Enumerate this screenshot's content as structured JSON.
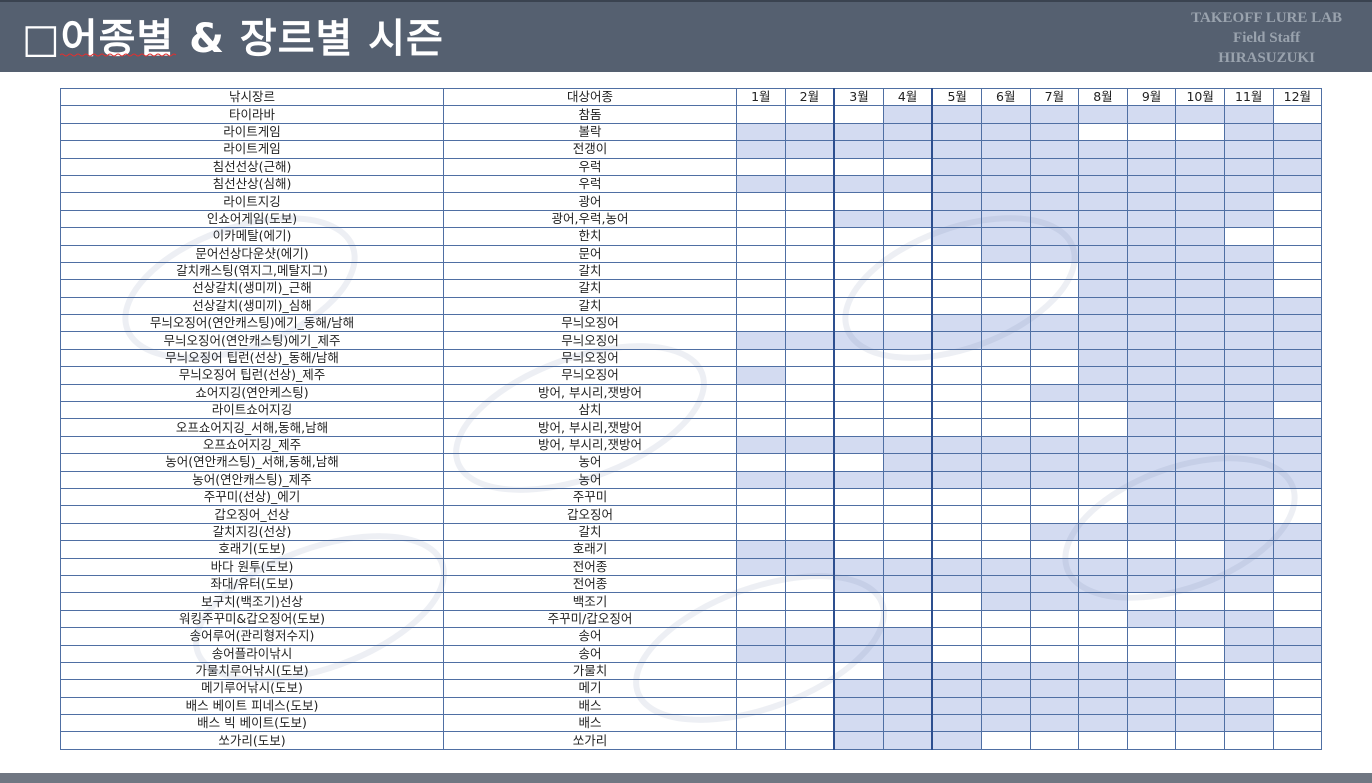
{
  "title": "□어종별 & 장르별 시즌",
  "brand": {
    "line1": "TAKEOFF LURE LAB",
    "line2": "Field  Staff",
    "line3": "HIRASUZUKI"
  },
  "colors": {
    "header_bg": "#556070",
    "cell_fill": "#d3dbf1",
    "grid_line": "#4f6fa3"
  },
  "table": {
    "headers": {
      "genre": "낚시장르",
      "species": "대상어종",
      "months": [
        "1월",
        "2월",
        "3월",
        "4월",
        "5월",
        "6월",
        "7월",
        "8월",
        "9월",
        "10월",
        "11월",
        "12월"
      ]
    },
    "rows": [
      {
        "genre": "타이라바",
        "species": "참돔",
        "months": [
          0,
          0,
          0,
          1,
          1,
          1,
          1,
          1,
          1,
          1,
          1,
          0
        ]
      },
      {
        "genre": "라이트게임",
        "species": "볼락",
        "months": [
          1,
          1,
          1,
          1,
          1,
          1,
          1,
          0,
          0,
          0,
          1,
          1
        ]
      },
      {
        "genre": "라이트게임",
        "species": "전갱이",
        "months": [
          1,
          1,
          1,
          1,
          1,
          1,
          1,
          1,
          1,
          1,
          1,
          1
        ]
      },
      {
        "genre": "침선선상(근해)",
        "species": "우럭",
        "months": [
          0,
          0,
          0,
          0,
          1,
          1,
          1,
          1,
          1,
          1,
          1,
          1
        ]
      },
      {
        "genre": "침선산상(심해)",
        "species": "우럭",
        "months": [
          1,
          1,
          1,
          1,
          1,
          1,
          1,
          1,
          1,
          1,
          1,
          1
        ]
      },
      {
        "genre": "라이트지깅",
        "species": "광어",
        "months": [
          0,
          0,
          0,
          0,
          1,
          1,
          1,
          1,
          1,
          1,
          1,
          0
        ]
      },
      {
        "genre": "인쇼어게임(도보)",
        "species": "광어,우럭,농어",
        "months": [
          0,
          0,
          1,
          1,
          1,
          1,
          1,
          1,
          1,
          1,
          1,
          0
        ]
      },
      {
        "genre": "이카메탈(에기)",
        "species": "한치",
        "months": [
          0,
          0,
          0,
          0,
          1,
          1,
          1,
          1,
          1,
          1,
          0,
          0
        ]
      },
      {
        "genre": "문어선상다운샷(에기)",
        "species": "문어",
        "months": [
          0,
          0,
          0,
          0,
          0,
          1,
          1,
          1,
          1,
          1,
          1,
          0
        ]
      },
      {
        "genre": "갈치캐스팅(엮지그,메탈지그)",
        "species": "갈치",
        "months": [
          0,
          0,
          0,
          0,
          0,
          0,
          0,
          1,
          1,
          1,
          1,
          0
        ]
      },
      {
        "genre": "선상갈치(생미끼)_근해",
        "species": "갈치",
        "months": [
          0,
          0,
          0,
          0,
          0,
          0,
          0,
          1,
          1,
          1,
          1,
          0
        ]
      },
      {
        "genre": "선상갈치(생미끼)_심해",
        "species": "갈치",
        "months": [
          0,
          0,
          0,
          0,
          0,
          0,
          0,
          1,
          1,
          1,
          1,
          1
        ]
      },
      {
        "genre": "무늬오징어(연안캐스팅)에기_동해/남해",
        "species": "무늬오징어",
        "months": [
          0,
          0,
          0,
          0,
          1,
          1,
          1,
          1,
          1,
          1,
          1,
          1
        ]
      },
      {
        "genre": "무늬오징어(연안캐스팅)에기_제주",
        "species": "무늬오징어",
        "months": [
          1,
          1,
          1,
          1,
          1,
          1,
          1,
          1,
          1,
          1,
          1,
          1
        ]
      },
      {
        "genre": "무늬오징어 팁런(선상)_동해/남해",
        "species": "무늬오징어",
        "months": [
          0,
          0,
          0,
          0,
          0,
          0,
          0,
          1,
          1,
          1,
          1,
          1
        ]
      },
      {
        "genre": "무늬오징어 팁런(선상)_제주",
        "species": "무늬오징어",
        "months": [
          1,
          0,
          0,
          0,
          0,
          0,
          0,
          1,
          1,
          1,
          1,
          1
        ]
      },
      {
        "genre": "쇼어지깅(연안케스팅)",
        "species": "방어, 부시리,잿방어",
        "months": [
          0,
          0,
          0,
          0,
          0,
          0,
          1,
          1,
          1,
          1,
          1,
          1
        ]
      },
      {
        "genre": "라이트쇼어지깅",
        "species": "삼치",
        "months": [
          0,
          0,
          0,
          0,
          0,
          0,
          0,
          0,
          1,
          1,
          1,
          0
        ]
      },
      {
        "genre": "오프쇼어지깅_서해,동해,남해",
        "species": "방어, 부시리,잿방어",
        "months": [
          0,
          0,
          0,
          0,
          0,
          0,
          0,
          0,
          1,
          1,
          1,
          1
        ]
      },
      {
        "genre": "오프쇼어지깅_제주",
        "species": "방어, 부시리,잿방어",
        "months": [
          1,
          1,
          1,
          1,
          1,
          1,
          1,
          1,
          1,
          1,
          1,
          1
        ]
      },
      {
        "genre": "농어(연안캐스팅)_서해,동해,남해",
        "species": "농어",
        "months": [
          0,
          0,
          0,
          1,
          1,
          1,
          1,
          1,
          1,
          1,
          1,
          1
        ]
      },
      {
        "genre": "농어(연안캐스팅)_제주",
        "species": "농어",
        "months": [
          1,
          1,
          1,
          1,
          1,
          1,
          1,
          1,
          1,
          1,
          1,
          1
        ]
      },
      {
        "genre": "주꾸미(선상)_에기",
        "species": "주꾸미",
        "months": [
          0,
          0,
          0,
          0,
          0,
          0,
          0,
          0,
          1,
          1,
          1,
          0
        ]
      },
      {
        "genre": "갑오징어_선상",
        "species": "갑오징어",
        "months": [
          0,
          0,
          0,
          0,
          0,
          0,
          0,
          0,
          1,
          1,
          1,
          0
        ]
      },
      {
        "genre": "갈치지깅(선상)",
        "species": "갈치",
        "months": [
          0,
          0,
          0,
          0,
          0,
          0,
          1,
          1,
          1,
          1,
          1,
          1
        ]
      },
      {
        "genre": "호래기(도보)",
        "species": "호래기",
        "months": [
          1,
          1,
          0,
          0,
          0,
          0,
          0,
          0,
          0,
          0,
          1,
          1
        ]
      },
      {
        "genre": "바다 원투(도보)",
        "species": "전어종",
        "months": [
          1,
          1,
          1,
          1,
          1,
          1,
          1,
          1,
          1,
          1,
          1,
          1
        ]
      },
      {
        "genre": "좌대/유터(도보)",
        "species": "전어종",
        "months": [
          0,
          0,
          1,
          1,
          1,
          1,
          1,
          1,
          1,
          1,
          1,
          0
        ]
      },
      {
        "genre": "보구치(백조기)선상",
        "species": "백조기",
        "months": [
          0,
          0,
          0,
          0,
          0,
          1,
          1,
          1,
          0,
          0,
          0,
          0
        ]
      },
      {
        "genre": "워킹주꾸미&갑오징어(도보)",
        "species": "주꾸미/갑오징어",
        "months": [
          0,
          0,
          0,
          0,
          0,
          0,
          0,
          0,
          1,
          1,
          1,
          0
        ]
      },
      {
        "genre": "송어루어(관리형저수지)",
        "species": "송어",
        "months": [
          1,
          1,
          1,
          1,
          0,
          0,
          0,
          0,
          0,
          0,
          1,
          1
        ]
      },
      {
        "genre": "송어플라이낚시",
        "species": "송어",
        "months": [
          1,
          1,
          1,
          1,
          0,
          0,
          0,
          0,
          0,
          0,
          1,
          1
        ]
      },
      {
        "genre": "가물치루어낚시(도보)",
        "species": "가물치",
        "months": [
          0,
          0,
          0,
          1,
          1,
          1,
          1,
          1,
          1,
          0,
          0,
          0
        ]
      },
      {
        "genre": "메기루어낚시(도보)",
        "species": "메기",
        "months": [
          0,
          0,
          1,
          1,
          1,
          1,
          1,
          1,
          1,
          1,
          0,
          0
        ]
      },
      {
        "genre": "배스 베이트 피네스(도보)",
        "species": "배스",
        "months": [
          0,
          0,
          1,
          1,
          1,
          1,
          1,
          1,
          1,
          1,
          1,
          0
        ]
      },
      {
        "genre": "배스 빅 베이트(도보)",
        "species": "배스",
        "months": [
          0,
          0,
          1,
          1,
          1,
          1,
          1,
          1,
          1,
          1,
          1,
          0
        ]
      },
      {
        "genre": "쏘가리(도보)",
        "species": "쏘가리",
        "months": [
          0,
          0,
          1,
          1,
          1,
          0,
          0,
          0,
          0,
          0,
          0,
          0
        ]
      }
    ]
  }
}
